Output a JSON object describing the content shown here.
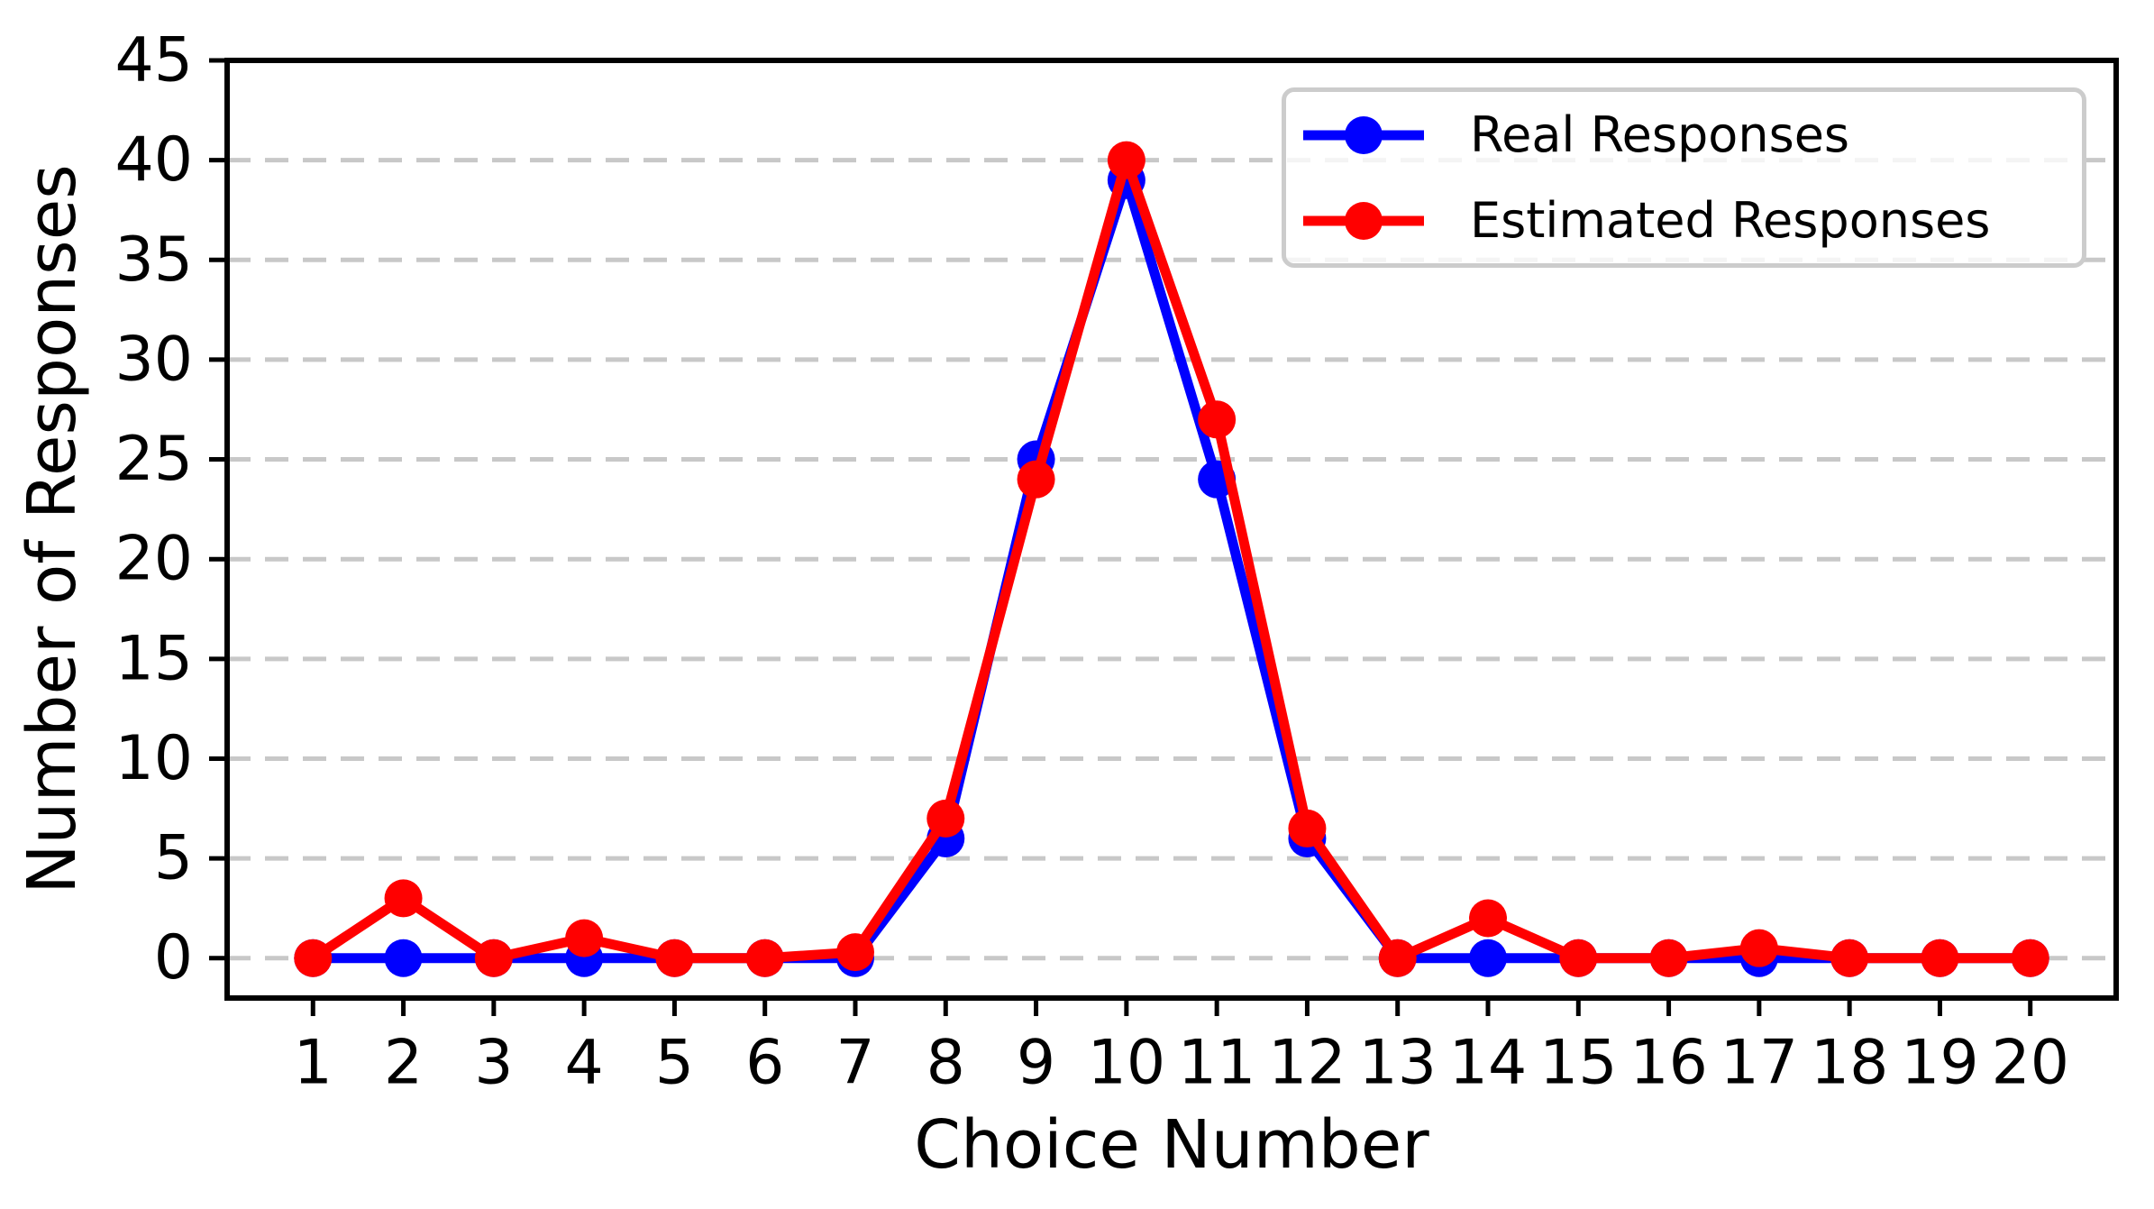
{
  "chart_data": {
    "type": "line",
    "title": "",
    "xlabel": "Choice Number",
    "ylabel": "Number of Responses",
    "x": [
      1,
      2,
      3,
      4,
      5,
      6,
      7,
      8,
      9,
      10,
      11,
      12,
      13,
      14,
      15,
      16,
      17,
      18,
      19,
      20
    ],
    "xticks": [
      1,
      2,
      3,
      4,
      5,
      6,
      7,
      8,
      9,
      10,
      11,
      12,
      13,
      14,
      15,
      16,
      17,
      18,
      19,
      20
    ],
    "yticks": [
      0,
      5,
      10,
      15,
      20,
      25,
      30,
      35,
      40,
      45
    ],
    "xlim": [
      0.05,
      20.95
    ],
    "ylim": [
      -2,
      45
    ],
    "grid": "horizontal-dashed",
    "grid_color": "#C8C8C8",
    "axis_color": "#000000",
    "legend_position": "upper-right",
    "legend_border_color": "#CCCCCC",
    "marker": "circle",
    "series": [
      {
        "name": "Real Responses",
        "color": "#0000FF",
        "values": [
          0,
          0,
          0,
          0,
          0,
          0,
          0,
          6,
          25,
          39,
          24,
          6,
          0,
          0,
          0,
          0,
          0,
          0,
          0,
          0
        ]
      },
      {
        "name": "Estimated Responses",
        "color": "#FF0000",
        "values": [
          0,
          3,
          0,
          1,
          0,
          0,
          0.3,
          7,
          24,
          40,
          27,
          6.5,
          0,
          2,
          0,
          0,
          0.5,
          0,
          0,
          0
        ]
      }
    ]
  }
}
